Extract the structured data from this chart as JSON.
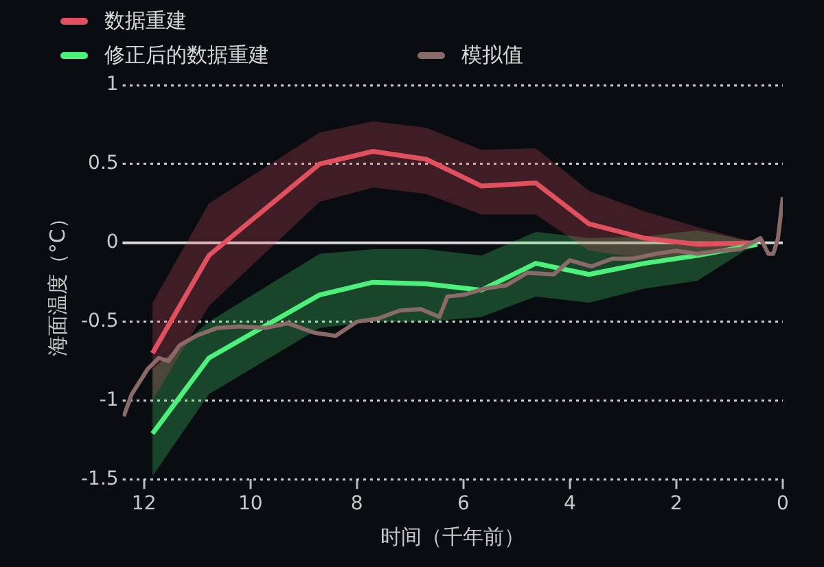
{
  "chart_data": {
    "type": "line",
    "xlabel": "时间（千年前）",
    "ylabel": "海面温度（°C）",
    "xlim": [
      12.4,
      0
    ],
    "xticks": [
      12,
      10,
      8,
      6,
      4,
      2,
      0
    ],
    "ylim": [
      -1.5,
      1
    ],
    "yticks": [
      -1.5,
      -1,
      -0.5,
      0,
      0.5,
      1
    ],
    "grid": "y",
    "legend": "top left",
    "marker": "none",
    "line_style": "solid",
    "ref_lines": [
      {
        "axis": "y",
        "value": 0,
        "color": "#d8d8d8"
      }
    ],
    "series": [
      {
        "name": "数据重建",
        "color": "#e0505e",
        "x": [
          11.84,
          10.78,
          8.7,
          7.7,
          6.7,
          5.66,
          4.64,
          3.64,
          2.6,
          1.6,
          0.48
        ],
        "values": [
          -0.7,
          -0.08,
          0.5,
          0.58,
          0.53,
          0.36,
          0.38,
          0.12,
          0.03,
          -0.01,
          0
        ],
        "lower": [
          -1.0,
          -0.4,
          0.26,
          0.35,
          0.31,
          0.18,
          0.18,
          -0.05,
          -0.1,
          -0.08,
          0
        ],
        "upper": [
          -0.38,
          0.25,
          0.7,
          0.77,
          0.73,
          0.59,
          0.6,
          0.33,
          0.2,
          0.1,
          0
        ]
      },
      {
        "name": "修正后的数据重建",
        "color": "#4cf07a",
        "x": [
          11.84,
          10.78,
          8.7,
          7.7,
          6.7,
          5.66,
          4.64,
          3.64,
          2.6,
          1.6,
          0.48
        ],
        "values": [
          -1.21,
          -0.73,
          -0.33,
          -0.25,
          -0.26,
          -0.3,
          -0.13,
          -0.2,
          -0.13,
          -0.08,
          -0.01
        ],
        "lower": [
          -1.48,
          -0.96,
          -0.54,
          -0.5,
          -0.5,
          -0.47,
          -0.34,
          -0.38,
          -0.29,
          -0.24,
          0
        ],
        "upper": [
          -0.8,
          -0.5,
          -0.07,
          -0.04,
          -0.04,
          -0.08,
          0.07,
          0.03,
          0.04,
          0.08,
          0
        ]
      },
      {
        "name": "模拟值",
        "color": "#8a6a66",
        "x": [
          12.38,
          12.23,
          11.93,
          11.72,
          11.54,
          11.33,
          11.02,
          10.63,
          10.2,
          9.73,
          9.3,
          8.8,
          8.4,
          8.0,
          7.6,
          7.2,
          6.8,
          6.45,
          6.3,
          6.0,
          5.6,
          5.2,
          4.8,
          4.3,
          4.0,
          3.6,
          3.2,
          2.8,
          2.4,
          2.0,
          1.6,
          1.2,
          0.8,
          0.42,
          0.27,
          0.18,
          0.09,
          0
        ],
        "values": [
          -1.1,
          -0.96,
          -0.8,
          -0.73,
          -0.75,
          -0.65,
          -0.59,
          -0.54,
          -0.53,
          -0.54,
          -0.51,
          -0.57,
          -0.59,
          -0.5,
          -0.48,
          -0.43,
          -0.42,
          -0.47,
          -0.34,
          -0.33,
          -0.29,
          -0.27,
          -0.19,
          -0.2,
          -0.11,
          -0.15,
          -0.1,
          -0.1,
          -0.07,
          -0.05,
          -0.07,
          -0.05,
          -0.04,
          0.03,
          -0.07,
          -0.07,
          0.03,
          0.29
        ]
      }
    ]
  }
}
